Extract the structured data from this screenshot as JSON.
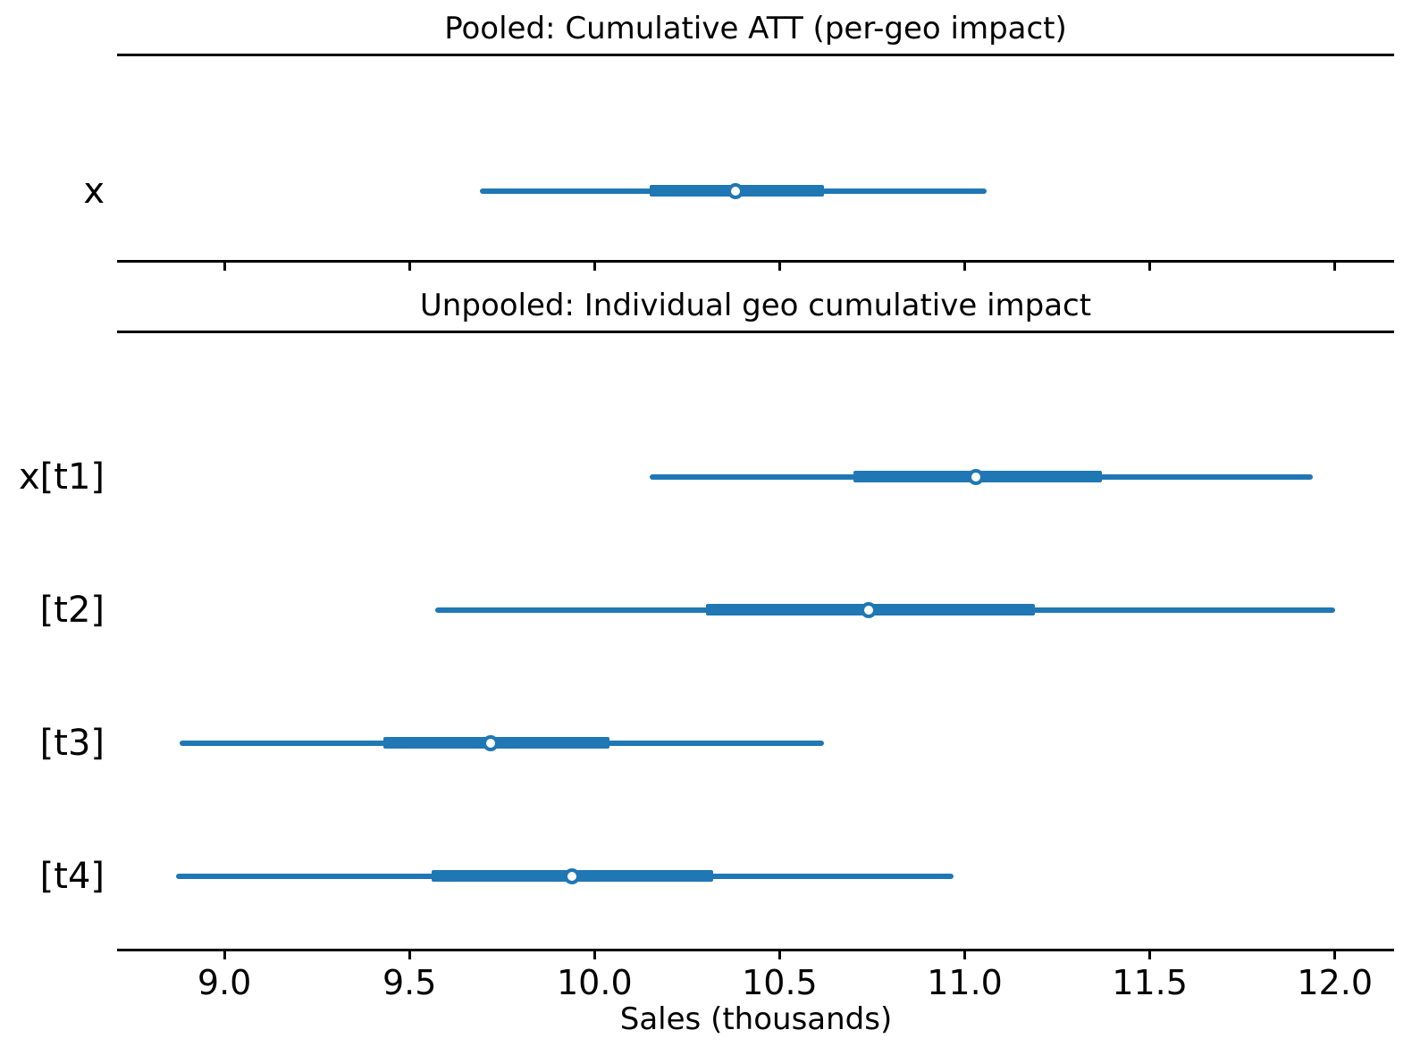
{
  "figure": {
    "background": "#ffffff"
  },
  "colors": {
    "interval": "#1f77b4",
    "marker_fill": "#ffffff",
    "spine": "#000000",
    "text": "#000000"
  },
  "x_axis": {
    "label": "Sales (thousands)",
    "min": 8.71,
    "max": 12.16,
    "ticks": [
      9.0,
      9.5,
      10.0,
      10.5,
      11.0,
      11.5,
      12.0
    ],
    "tick_labels": [
      "9.0",
      "9.5",
      "10.0",
      "10.5",
      "11.0",
      "11.5",
      "12.0"
    ]
  },
  "chart_data": [
    {
      "type": "forest",
      "title": "Pooled: Cumulative ATT (per-geo impact)",
      "xlabel": "",
      "xlim": [
        8.71,
        12.16
      ],
      "xticks": [
        9.0,
        9.5,
        10.0,
        10.5,
        11.0,
        11.5,
        12.0
      ],
      "xticks_labeled": false,
      "legend": "none",
      "grid": false,
      "rows": [
        {
          "label": "x",
          "median": 10.38,
          "inner_interval": [
            10.15,
            10.62
          ],
          "outer_interval": [
            9.69,
            11.06
          ]
        }
      ]
    },
    {
      "type": "forest",
      "title": "Unpooled: Individual geo cumulative impact",
      "xlabel": "Sales (thousands)",
      "xlim": [
        8.71,
        12.16
      ],
      "xticks": [
        9.0,
        9.5,
        10.0,
        10.5,
        11.0,
        11.5,
        12.0
      ],
      "xticks_labeled": true,
      "legend": "none",
      "grid": false,
      "rows": [
        {
          "label": "x[t1]",
          "median": 11.03,
          "inner_interval": [
            10.7,
            11.37
          ],
          "outer_interval": [
            10.15,
            11.94
          ]
        },
        {
          "label": "[t2]",
          "median": 10.74,
          "inner_interval": [
            10.3,
            11.19
          ],
          "outer_interval": [
            9.57,
            12.0
          ]
        },
        {
          "label": "[t3]",
          "median": 9.72,
          "inner_interval": [
            9.43,
            10.04
          ],
          "outer_interval": [
            8.88,
            10.62
          ]
        },
        {
          "label": "[t4]",
          "median": 9.94,
          "inner_interval": [
            9.56,
            10.32
          ],
          "outer_interval": [
            8.87,
            10.97
          ]
        }
      ]
    }
  ]
}
